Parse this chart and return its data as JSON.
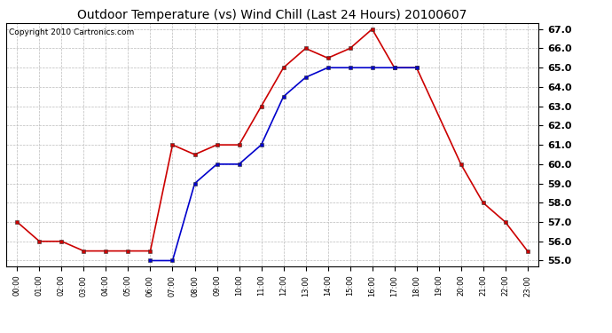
{
  "title": "Outdoor Temperature (vs) Wind Chill (Last 24 Hours) 20100607",
  "copyright": "Copyright 2010 Cartronics.com",
  "hours": [
    "00:00",
    "01:00",
    "02:00",
    "03:00",
    "04:00",
    "05:00",
    "06:00",
    "07:00",
    "08:00",
    "09:00",
    "10:00",
    "11:00",
    "12:00",
    "13:00",
    "14:00",
    "15:00",
    "16:00",
    "17:00",
    "18:00",
    "19:00",
    "20:00",
    "21:00",
    "22:00",
    "23:00"
  ],
  "temp": [
    57.0,
    56.0,
    56.0,
    55.5,
    55.5,
    55.5,
    55.5,
    61.0,
    60.5,
    61.0,
    61.0,
    63.0,
    65.0,
    66.0,
    65.5,
    66.0,
    67.0,
    65.0,
    65.0,
    null,
    60.0,
    58.0,
    57.0,
    55.5
  ],
  "windchill": [
    null,
    null,
    null,
    null,
    null,
    null,
    55.0,
    55.0,
    59.0,
    60.0,
    60.0,
    61.0,
    63.5,
    64.5,
    65.0,
    65.0,
    65.0,
    65.0,
    65.0,
    null,
    null,
    null,
    null,
    null
  ],
  "temp_color": "#cc0000",
  "windchill_color": "#0000cc",
  "background_color": "#ffffff",
  "plot_bg_color": "#ffffff",
  "grid_color": "#bbbbbb",
  "ylim_min": 55.0,
  "ylim_max": 67.0,
  "ytick_step": 1.0,
  "title_fontsize": 10,
  "copyright_fontsize": 6.5,
  "marker_size": 3,
  "linewidth": 1.2
}
